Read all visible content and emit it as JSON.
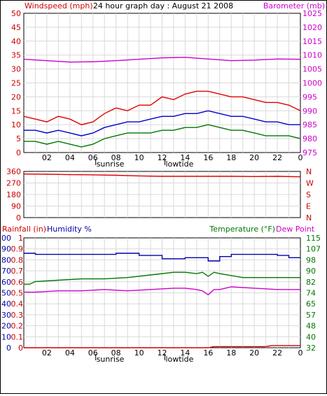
{
  "title": "24 hour graph day : August 21 2008",
  "chart_data": [
    {
      "id": "top",
      "type": "line",
      "left_label": "Windspeed (mph)",
      "right_label": "Barometer (mb)",
      "left_ticks": [
        "0",
        "5",
        "10",
        "15",
        "20",
        "25",
        "30",
        "35",
        "40",
        "45",
        "50"
      ],
      "right_ticks": [
        "975",
        "980",
        "985",
        "990",
        "995",
        "1000",
        "1005",
        "1010",
        "1015",
        "1020",
        "1025"
      ],
      "ylim_left": [
        0,
        50
      ],
      "ylim_right": [
        975,
        1025
      ],
      "x_ticks": [
        "02",
        "04",
        "06",
        "08",
        "10",
        "12",
        "14",
        "16",
        "18",
        "20",
        "22",
        "0"
      ],
      "xlim": [
        0,
        24
      ],
      "annotations": [
        {
          "text": "sunrise",
          "x": 6.3
        },
        {
          "text": "lowtide",
          "x": 12.3
        }
      ],
      "series": [
        {
          "color": "#e00000",
          "axis": "left",
          "x": [
            0,
            1,
            2,
            3,
            4,
            5,
            6,
            7,
            8,
            9,
            10,
            11,
            12,
            13,
            14,
            15,
            16,
            17,
            18,
            19,
            20,
            21,
            22,
            23,
            24
          ],
          "y": [
            13,
            12,
            11,
            13,
            12,
            10,
            11,
            14,
            16,
            15,
            17,
            17,
            20,
            19,
            21,
            22,
            22,
            21,
            20,
            20,
            19,
            18,
            18,
            17,
            15
          ]
        },
        {
          "color": "#0000cc",
          "axis": "left",
          "x": [
            0,
            1,
            2,
            3,
            4,
            5,
            6,
            7,
            8,
            9,
            10,
            11,
            12,
            13,
            14,
            15,
            16,
            17,
            18,
            19,
            20,
            21,
            22,
            23,
            24
          ],
          "y": [
            8,
            8,
            7,
            8,
            7,
            6,
            7,
            9,
            10,
            11,
            11,
            12,
            13,
            13,
            14,
            14,
            15,
            14,
            13,
            13,
            12,
            11,
            11,
            10,
            10
          ]
        },
        {
          "color": "#007700",
          "axis": "left",
          "x": [
            0,
            1,
            2,
            3,
            4,
            5,
            6,
            7,
            8,
            9,
            10,
            11,
            12,
            13,
            14,
            15,
            16,
            17,
            18,
            19,
            20,
            21,
            22,
            23,
            24
          ],
          "y": [
            4,
            4,
            3,
            4,
            3,
            2,
            3,
            5,
            6,
            7,
            7,
            7,
            8,
            8,
            9,
            9,
            10,
            9,
            8,
            8,
            7,
            6,
            6,
            6,
            5
          ]
        },
        {
          "color": "#cc00cc",
          "axis": "right",
          "x": [
            0,
            2,
            4,
            6,
            8,
            10,
            12,
            14,
            16,
            18,
            20,
            22,
            24
          ],
          "y": [
            1008.5,
            1008.0,
            1007.5,
            1007.6,
            1008.0,
            1008.5,
            1009.0,
            1009.2,
            1008.6,
            1008.0,
            1008.2,
            1008.6,
            1008.5
          ]
        }
      ]
    },
    {
      "id": "middle",
      "type": "line",
      "left_ticks": [
        "0",
        "90",
        "180",
        "270",
        "360"
      ],
      "right_ticks": [
        "N",
        "E",
        "S",
        "W",
        "N"
      ],
      "ylim_left": [
        0,
        360
      ],
      "xlim": [
        0,
        24
      ],
      "series": [
        {
          "color": "#e00000",
          "axis": "left",
          "x": [
            0,
            2,
            4,
            6,
            8,
            10,
            12,
            14,
            16,
            18,
            20,
            22,
            24
          ],
          "y": [
            340,
            338,
            335,
            333,
            330,
            325,
            322,
            322,
            322,
            322,
            320,
            322,
            318
          ]
        }
      ]
    },
    {
      "id": "bottom",
      "type": "line",
      "rain_label": "Rainfall (in)",
      "humidity_label": "Humidity %",
      "temp_label": "Temperature (°F)",
      "dewpoint_label": "Dew Point",
      "rain_ticks": [
        "0",
        "0.1",
        "0.2",
        "0.3",
        "0.4",
        "0.5",
        "0.6",
        "0.7",
        "0.8",
        "0.9",
        "1"
      ],
      "humidity_ticks": [
        "0",
        "10",
        "20",
        "30",
        "40",
        "50",
        "60",
        "70",
        "80",
        "90",
        "100"
      ],
      "temp_ticks": [
        "32",
        "40",
        "48",
        "57",
        "65",
        "74",
        "82",
        "90",
        "98",
        "107",
        "115"
      ],
      "ylim_humidity": [
        0,
        100
      ],
      "ylim_temp": [
        32,
        115
      ],
      "x_ticks": [
        "02",
        "04",
        "06",
        "08",
        "10",
        "12",
        "14",
        "16",
        "18",
        "20",
        "22",
        "0"
      ],
      "xlim": [
        0,
        24
      ],
      "annotations": [
        {
          "text": "sunrise",
          "x": 6.3
        },
        {
          "text": "lowtide",
          "x": 12.3
        }
      ],
      "series": [
        {
          "color": "#0000aa",
          "axis": "humidity",
          "x": [
            0,
            1,
            1,
            5,
            5,
            8,
            8,
            10,
            10,
            12,
            12,
            14,
            14,
            16,
            16,
            17,
            17,
            18,
            18,
            22,
            22,
            23,
            23,
            24
          ],
          "y": [
            86,
            86,
            85,
            85,
            85,
            85,
            86,
            86,
            84,
            84,
            81,
            81,
            82,
            82,
            79,
            79,
            83,
            83,
            85,
            85,
            84,
            84,
            82,
            82
          ]
        },
        {
          "color": "#007700",
          "axis": "temp",
          "x": [
            0,
            0.5,
            1,
            3,
            5,
            7,
            9,
            11,
            13,
            14,
            15,
            15.5,
            16,
            16.5,
            17,
            19,
            21,
            23,
            24
          ],
          "y": [
            80,
            80,
            82,
            83,
            84,
            84,
            85,
            87,
            89,
            89,
            88,
            89,
            86,
            89,
            88,
            85,
            85,
            85,
            85
          ]
        },
        {
          "color": "#cc00cc",
          "axis": "temp",
          "x": [
            0,
            1,
            3,
            5,
            7,
            9,
            11,
            13,
            14,
            15,
            15.5,
            16,
            16.5,
            17,
            18,
            20,
            22,
            24
          ],
          "y": [
            74,
            74,
            75,
            75,
            76,
            75,
            76,
            77,
            77,
            76,
            75,
            72,
            76,
            76,
            78,
            77,
            76,
            76
          ]
        },
        {
          "color": "#cc0000",
          "axis": "rain",
          "x": [
            0,
            12,
            16,
            16.5,
            21,
            21.5,
            24
          ],
          "y": [
            0,
            0,
            0,
            0.01,
            0.01,
            0.02,
            0.02
          ]
        }
      ]
    }
  ]
}
